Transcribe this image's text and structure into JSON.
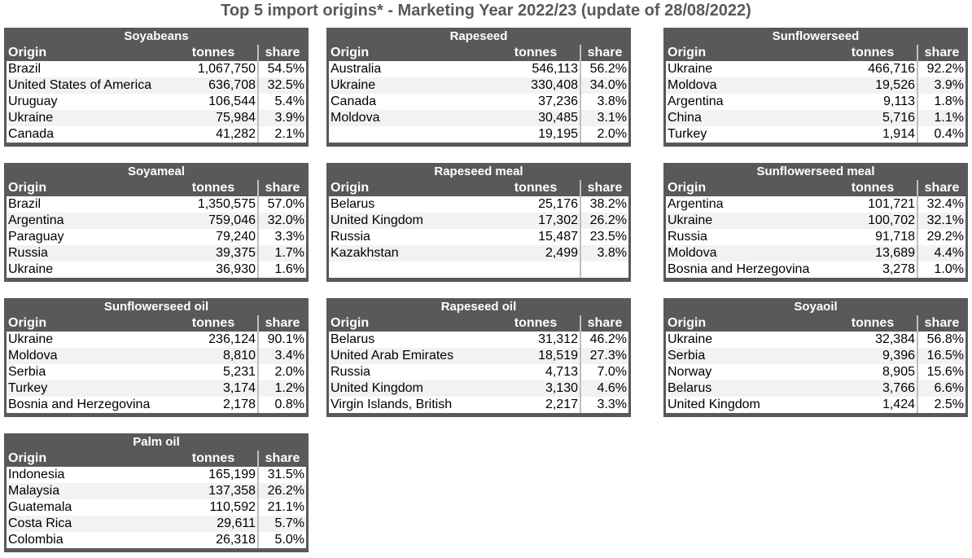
{
  "title": "Top 5 import origins* - Marketing Year 2022/23 (update of 28/08/2022)",
  "headers": {
    "origin": "Origin",
    "tonnes": "tonnes",
    "share": "share"
  },
  "panels": [
    {
      "name": "Soyabeans",
      "rows": [
        {
          "origin": "Brazil",
          "tonnes": "1,067,750",
          "share": "54.5%"
        },
        {
          "origin": "United States of America",
          "tonnes": "636,708",
          "share": "32.5%"
        },
        {
          "origin": "Uruguay",
          "tonnes": "106,544",
          "share": "5.4%"
        },
        {
          "origin": "Ukraine",
          "tonnes": "75,984",
          "share": "3.9%"
        },
        {
          "origin": "Canada",
          "tonnes": "41,282",
          "share": "2.1%"
        }
      ]
    },
    {
      "name": "Rapeseed",
      "rows": [
        {
          "origin": "Australia",
          "tonnes": "546,113",
          "share": "56.2%"
        },
        {
          "origin": "Ukraine",
          "tonnes": "330,408",
          "share": "34.0%"
        },
        {
          "origin": "Canada",
          "tonnes": "37,236",
          "share": "3.8%"
        },
        {
          "origin": "Moldova",
          "tonnes": "30,485",
          "share": "3.1%"
        },
        {
          "origin": "",
          "tonnes": "19,195",
          "share": "2.0%"
        }
      ]
    },
    {
      "name": "Sunflowerseed",
      "rows": [
        {
          "origin": "Ukraine",
          "tonnes": "466,716",
          "share": "92.2%"
        },
        {
          "origin": "Moldova",
          "tonnes": "19,526",
          "share": "3.9%"
        },
        {
          "origin": "Argentina",
          "tonnes": "9,113",
          "share": "1.8%"
        },
        {
          "origin": "China",
          "tonnes": "5,716",
          "share": "1.1%"
        },
        {
          "origin": "Turkey",
          "tonnes": "1,914",
          "share": "0.4%"
        }
      ]
    },
    {
      "name": "Soyameal",
      "rows": [
        {
          "origin": "Brazil",
          "tonnes": "1,350,575",
          "share": "57.0%"
        },
        {
          "origin": "Argentina",
          "tonnes": "759,046",
          "share": "32.0%"
        },
        {
          "origin": "Paraguay",
          "tonnes": "79,240",
          "share": "3.3%"
        },
        {
          "origin": "Russia",
          "tonnes": "39,375",
          "share": "1.7%"
        },
        {
          "origin": "Ukraine",
          "tonnes": "36,930",
          "share": "1.6%"
        }
      ]
    },
    {
      "name": "Rapeseed meal",
      "rows": [
        {
          "origin": "Belarus",
          "tonnes": "25,176",
          "share": "38.2%"
        },
        {
          "origin": "United Kingdom",
          "tonnes": "17,302",
          "share": "26.2%"
        },
        {
          "origin": "Russia",
          "tonnes": "15,487",
          "share": "23.5%"
        },
        {
          "origin": "Kazakhstan",
          "tonnes": "2,499",
          "share": "3.8%"
        },
        {
          "origin": "",
          "tonnes": "",
          "share": ""
        }
      ]
    },
    {
      "name": "Sunflowerseed meal",
      "rows": [
        {
          "origin": "Argentina",
          "tonnes": "101,721",
          "share": "32.4%"
        },
        {
          "origin": "Ukraine",
          "tonnes": "100,702",
          "share": "32.1%"
        },
        {
          "origin": "Russia",
          "tonnes": "91,718",
          "share": "29.2%"
        },
        {
          "origin": "Moldova",
          "tonnes": "13,689",
          "share": "4.4%"
        },
        {
          "origin": "Bosnia and Herzegovina",
          "tonnes": "3,278",
          "share": "1.0%"
        }
      ]
    },
    {
      "name": "Sunflowerseed oil",
      "rows": [
        {
          "origin": "Ukraine",
          "tonnes": "236,124",
          "share": "90.1%"
        },
        {
          "origin": "Moldova",
          "tonnes": "8,810",
          "share": "3.4%"
        },
        {
          "origin": "Serbia",
          "tonnes": "5,231",
          "share": "2.0%"
        },
        {
          "origin": "Turkey",
          "tonnes": "3,174",
          "share": "1.2%"
        },
        {
          "origin": "Bosnia and Herzegovina",
          "tonnes": "2,178",
          "share": "0.8%"
        }
      ]
    },
    {
      "name": "Rapeseed oil",
      "rows": [
        {
          "origin": "Belarus",
          "tonnes": "31,312",
          "share": "46.2%"
        },
        {
          "origin": "United Arab Emirates",
          "tonnes": "18,519",
          "share": "27.3%"
        },
        {
          "origin": "Russia",
          "tonnes": "4,713",
          "share": "7.0%"
        },
        {
          "origin": "United Kingdom",
          "tonnes": "3,130",
          "share": "4.6%"
        },
        {
          "origin": "Virgin Islands, British",
          "tonnes": "2,217",
          "share": "3.3%"
        }
      ]
    },
    {
      "name": "Soyaoil",
      "rows": [
        {
          "origin": "Ukraine",
          "tonnes": "32,384",
          "share": "56.8%"
        },
        {
          "origin": "Serbia",
          "tonnes": "9,396",
          "share": "16.5%"
        },
        {
          "origin": "Norway",
          "tonnes": "8,905",
          "share": "15.6%"
        },
        {
          "origin": "Belarus",
          "tonnes": "3,766",
          "share": "6.6%"
        },
        {
          "origin": "United Kingdom",
          "tonnes": "1,424",
          "share": "2.5%"
        }
      ]
    },
    {
      "name": "Palm oil",
      "rows": [
        {
          "origin": "Indonesia",
          "tonnes": "165,199",
          "share": "31.5%"
        },
        {
          "origin": "Malaysia",
          "tonnes": "137,358",
          "share": "26.2%"
        },
        {
          "origin": "Guatemala",
          "tonnes": "110,592",
          "share": "21.1%"
        },
        {
          "origin": "Costa Rica",
          "tonnes": "29,611",
          "share": "5.7%"
        },
        {
          "origin": "Colombia",
          "tonnes": "26,318",
          "share": "5.0%"
        }
      ]
    }
  ]
}
